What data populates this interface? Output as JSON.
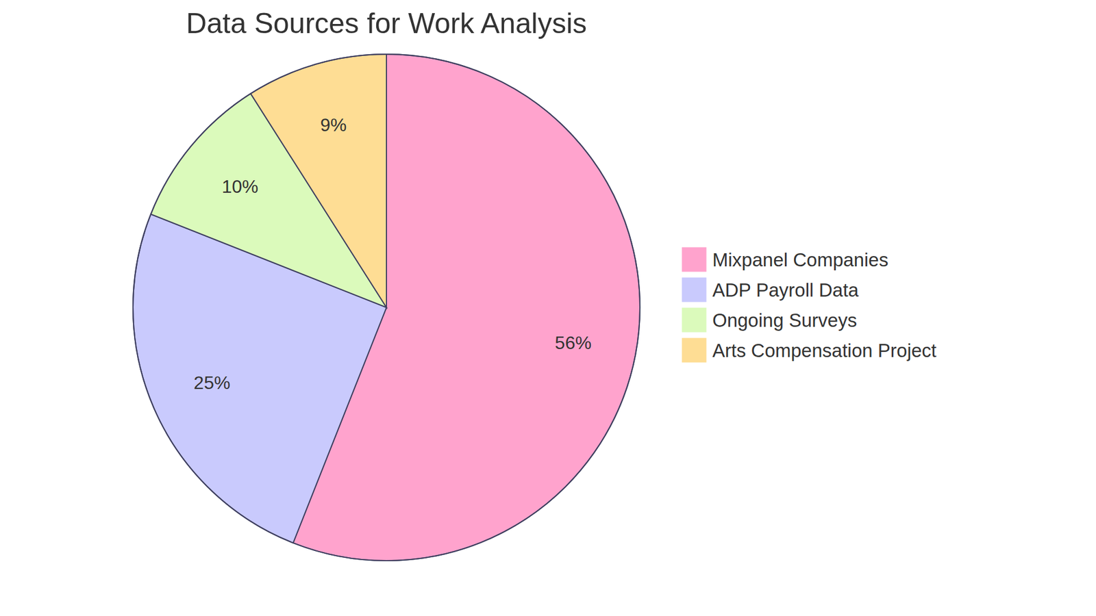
{
  "chart_data": {
    "type": "pie",
    "title": "Data Sources for Work Analysis",
    "categories": [
      "Mixpanel Companies",
      "ADP Payroll Data",
      "Ongoing Surveys",
      "Arts Compensation Project"
    ],
    "values": [
      56,
      25,
      10,
      9
    ],
    "value_labels": [
      "56%",
      "25%",
      "10%",
      "9%"
    ],
    "colors": [
      "#ffa3cd",
      "#c9cafd",
      "#dbfabb",
      "#fedd94"
    ],
    "data_labels": true,
    "legend": "right"
  }
}
